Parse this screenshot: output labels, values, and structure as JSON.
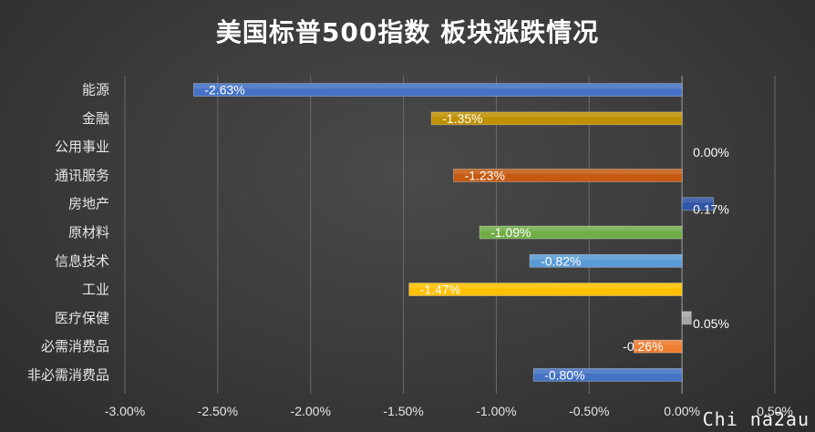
{
  "chart_data": {
    "type": "bar",
    "orientation": "horizontal",
    "title": "美国标普500指数 板块涨跌情况",
    "categories": [
      "能源",
      "金融",
      "公用事业",
      "通讯服务",
      "房地产",
      "原材料",
      "信息技术",
      "工业",
      "医疗保健",
      "必需消费品",
      "非必需消费品"
    ],
    "values": [
      -2.63,
      -1.35,
      0.0,
      -1.23,
      0.17,
      -1.09,
      -0.82,
      -1.47,
      0.05,
      -0.26,
      -0.8
    ],
    "data_labels": [
      "-2.63%",
      "-1.35%",
      "0.00%",
      "-1.23%",
      "0.17%",
      "-1.09%",
      "-0.82%",
      "-1.47%",
      "0.05%",
      "-0.26%",
      "-0.80%"
    ],
    "bar_colors": [
      "#4472c4",
      "#bf9000",
      "#a5a5a5",
      "#c55a11",
      "#2f55a4",
      "#70ad47",
      "#5b9bd5",
      "#ffc000",
      "#a5a5a5",
      "#ed7d31",
      "#4472c4"
    ],
    "xlim": [
      -3.0,
      0.5
    ],
    "ticks": [
      -3.0,
      -2.5,
      -2.0,
      -1.5,
      -1.0,
      -0.5,
      0.0,
      0.5
    ],
    "tick_labels": [
      "-3.00%",
      "-2.50%",
      "-2.00%",
      "-1.50%",
      "-1.00%",
      "-0.50%",
      "0.00%",
      "0.50%"
    ],
    "grid": true,
    "xlabel": "",
    "ylabel": ""
  },
  "watermark": "Chi na2au"
}
